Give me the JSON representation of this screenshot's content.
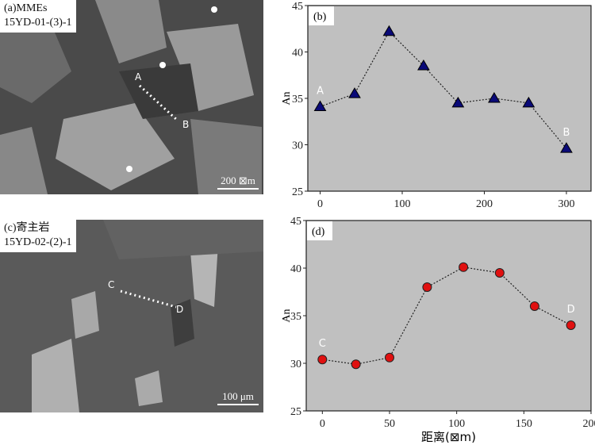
{
  "panels": {
    "a": {
      "label": "(a)MMEs",
      "sample": "15YD-01-(3)-1",
      "scale": "200 ⊠m",
      "points": [
        "A",
        "B"
      ]
    },
    "c": {
      "label": "(c)寄主岩",
      "sample": "15YD-02-(2)-1",
      "scale": "100 μm",
      "points": [
        "C",
        "D"
      ]
    }
  },
  "colors": {
    "plot_bg": "#c0c0c0",
    "triangle": "#0a0a78",
    "circle": "#e01010"
  },
  "chart_data": [
    {
      "type": "line",
      "panel_label": "(b)",
      "ylabel": "An",
      "xlabel": "",
      "xlim": [
        -15,
        330
      ],
      "ylim": [
        25,
        45
      ],
      "xticks": [
        "0",
        "100",
        "200",
        "300"
      ],
      "yticks": [
        "25",
        "30",
        "35",
        "40",
        "45"
      ],
      "x": [
        0,
        42,
        84,
        126,
        168,
        212,
        254,
        300
      ],
      "values": [
        34.1,
        35.5,
        42.2,
        38.5,
        34.5,
        35.0,
        34.5,
        29.6
      ],
      "marker": "triangle",
      "annotations": [
        {
          "text": "A",
          "x": 0
        },
        {
          "text": "B",
          "x": 300
        }
      ]
    },
    {
      "type": "line",
      "panel_label": "(d)",
      "ylabel": "An",
      "xlabel": "距离(⊠m)",
      "xlim": [
        -12,
        200
      ],
      "ylim": [
        25,
        45
      ],
      "xticks": [
        "0",
        "50",
        "100",
        "150",
        "200"
      ],
      "yticks": [
        "25",
        "30",
        "35",
        "40",
        "45"
      ],
      "x": [
        0,
        25,
        50,
        78,
        105,
        132,
        158,
        185
      ],
      "values": [
        30.4,
        29.9,
        30.6,
        38.0,
        40.1,
        39.5,
        36.0,
        34.0
      ],
      "marker": "circle",
      "annotations": [
        {
          "text": "C",
          "x": 0
        },
        {
          "text": "D",
          "x": 185
        }
      ]
    }
  ]
}
